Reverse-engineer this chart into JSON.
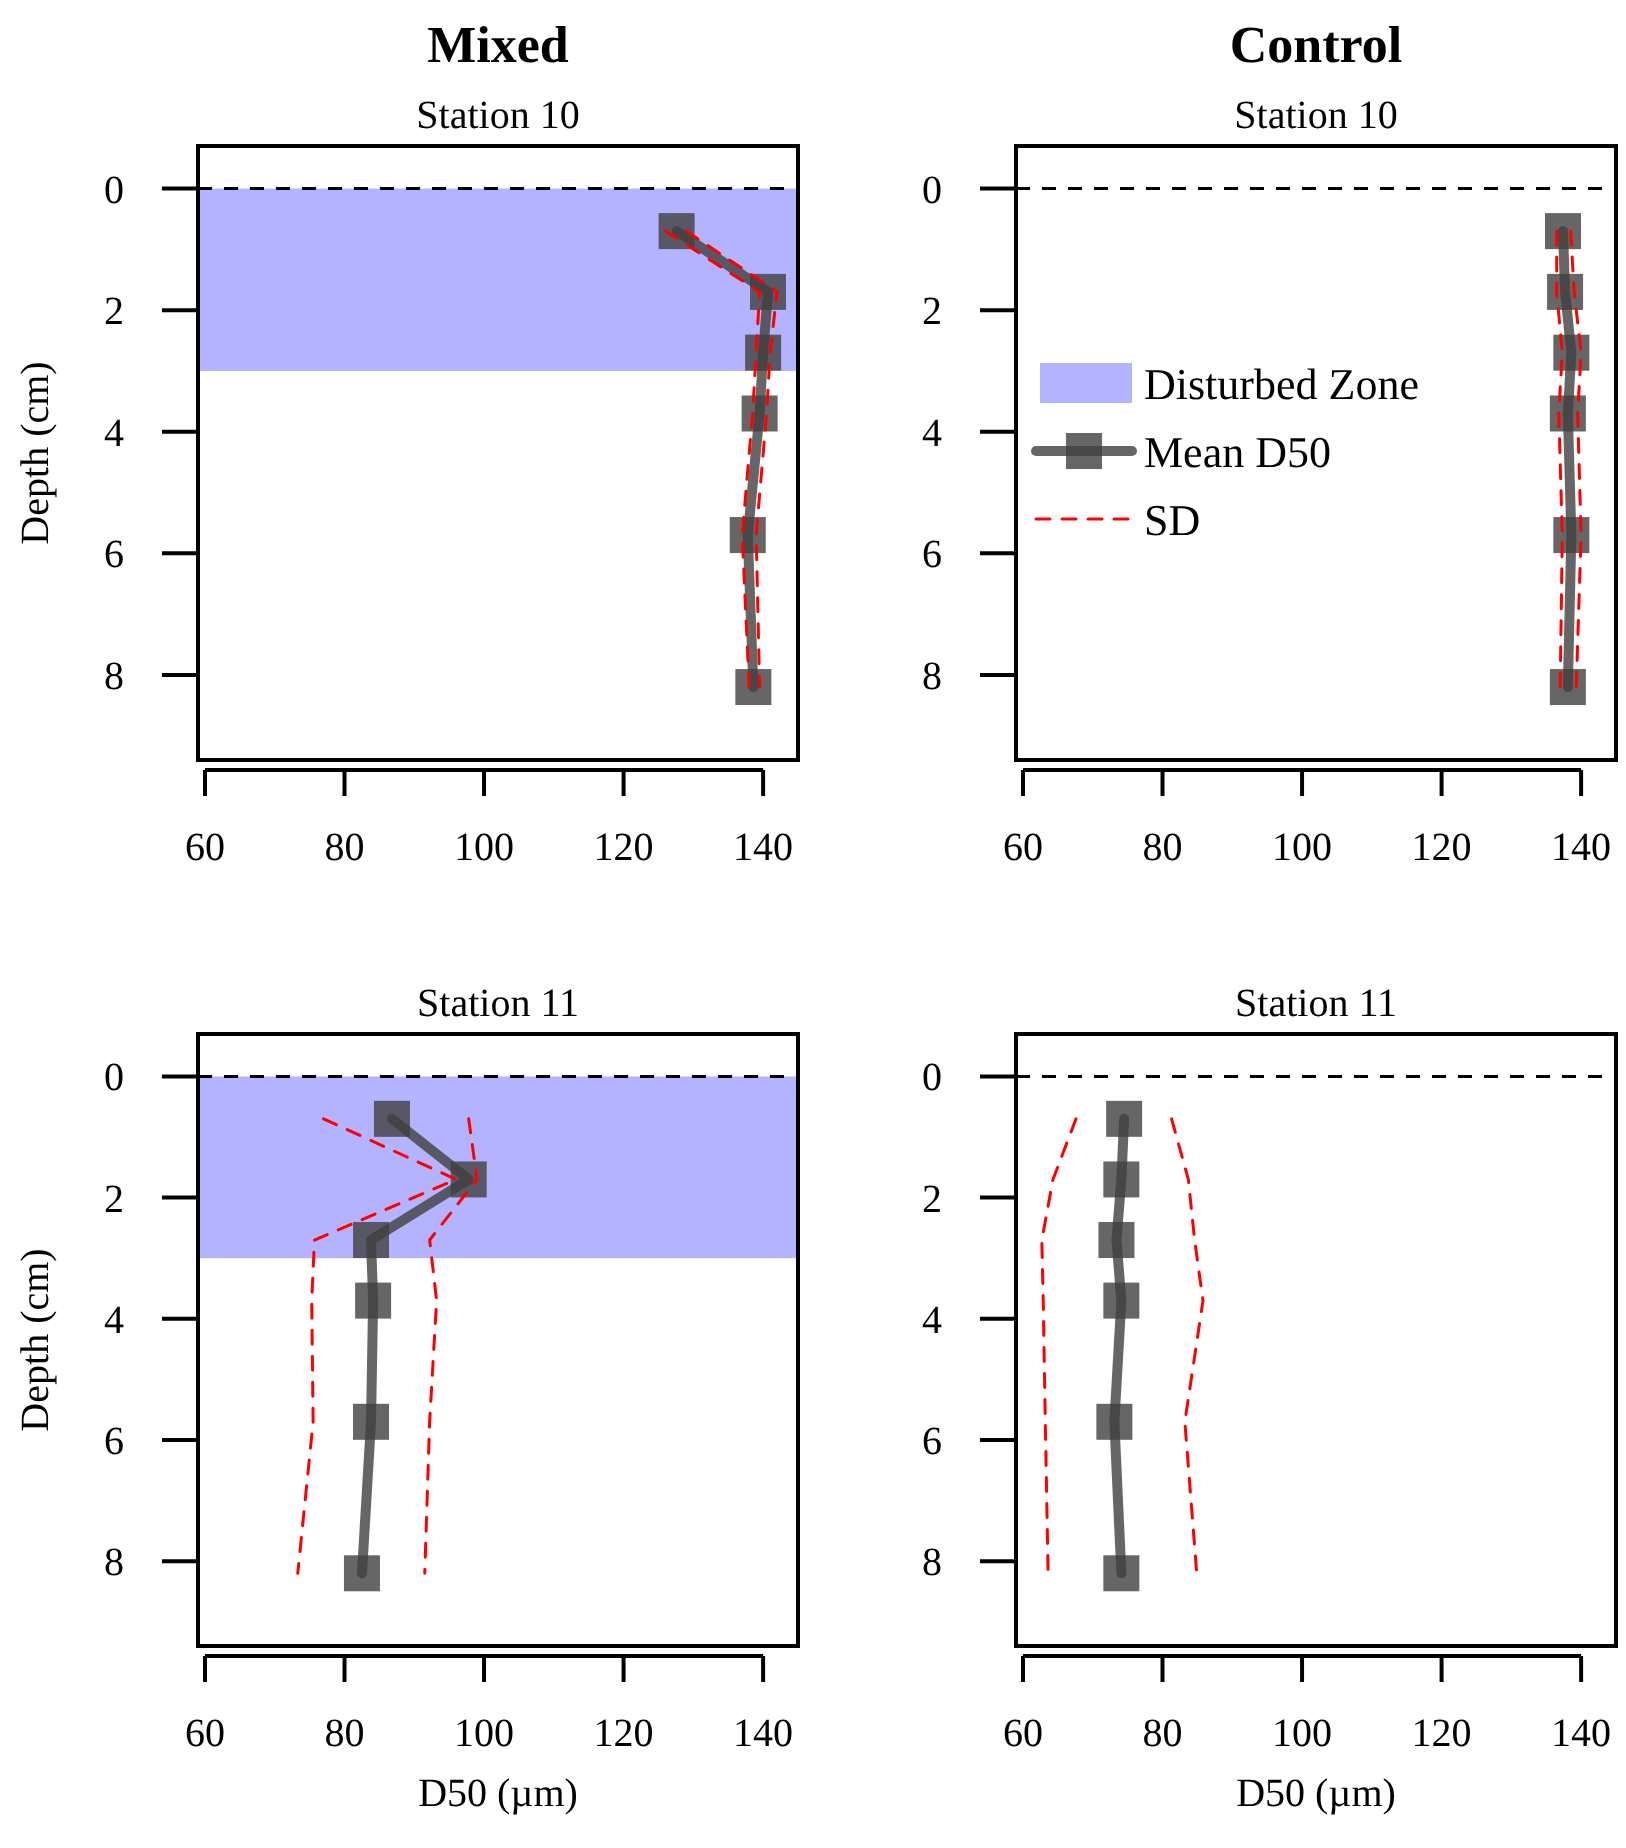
{
  "chart_data": [
    {
      "type": "line",
      "title": "Mixed",
      "subtitle": "Station 10",
      "ylabel": "Depth (cm)",
      "xlim": [
        59,
        145
      ],
      "xticks": [
        60,
        80,
        100,
        120,
        140
      ],
      "ylim": [
        9.4,
        -0.7
      ],
      "yticks": [
        0,
        2,
        4,
        6,
        8
      ],
      "bands": [
        {
          "axis": "y",
          "from": 0,
          "to": 3,
          "label": "Disturbed Zone",
          "color": "#b3b3ff"
        }
      ],
      "ref_lines": [
        {
          "axis": "y",
          "value": 0,
          "color": "#000000",
          "line_style": "dashed"
        }
      ],
      "series": [
        {
          "color": "#404040",
          "marker": "square",
          "x": [
            127.6,
            140.7,
            140,
            139.5,
            137.8,
            138.6
          ],
          "values": [
            0.7,
            1.7,
            2.7,
            3.7,
            5.7,
            8.2
          ]
        },
        {
          "color": "#ff0000",
          "line_style": "dashed",
          "marker": "none",
          "x": [
            126,
            139.5,
            139,
            138.5,
            137,
            138
          ],
          "values": [
            0.7,
            1.7,
            2.7,
            3.7,
            5.7,
            8.2
          ]
        },
        {
          "color": "#ff0000",
          "line_style": "dashed",
          "marker": "none",
          "x": [
            129,
            142,
            141,
            140.5,
            139,
            139.5
          ],
          "values": [
            0.7,
            1.7,
            2.7,
            3.7,
            5.7,
            8.2
          ]
        }
      ]
    },
    {
      "type": "line",
      "title": "Control",
      "subtitle": "Station 10",
      "xlim": [
        59,
        145
      ],
      "xticks": [
        60,
        80,
        100,
        120,
        140
      ],
      "ylim": [
        9.4,
        -0.7
      ],
      "yticks": [
        0,
        2,
        4,
        6,
        8
      ],
      "legend": "left",
      "ref_lines": [
        {
          "axis": "y",
          "value": 0,
          "color": "#000000",
          "line_style": "dashed"
        }
      ],
      "series": [
        {
          "name": "Mean D50",
          "color": "#404040",
          "marker": "square",
          "x": [
            137.4,
            137.7,
            138.6,
            138.1,
            138.6,
            138.1
          ],
          "values": [
            0.7,
            1.7,
            2.7,
            3.7,
            5.7,
            8.2
          ]
        },
        {
          "name": "SD",
          "color": "#ff0000",
          "line_style": "dashed",
          "marker": "none",
          "x": [
            136.5,
            136.5,
            137.3,
            136.8,
            137.3,
            137
          ],
          "values": [
            0.7,
            1.7,
            2.7,
            3.7,
            5.7,
            8.2
          ]
        },
        {
          "color": "#ff0000",
          "line_style": "dashed",
          "marker": "none",
          "x": [
            138.5,
            139,
            140,
            139.5,
            140,
            139.3
          ],
          "values": [
            0.7,
            1.7,
            2.7,
            3.7,
            5.7,
            8.2
          ]
        }
      ]
    },
    {
      "type": "line",
      "subtitle": "Station 11",
      "ylabel": "Depth (cm)",
      "xlabel": "D50 (µm)",
      "xlim": [
        59,
        145
      ],
      "xticks": [
        60,
        80,
        100,
        120,
        140
      ],
      "ylim": [
        9.4,
        -0.7
      ],
      "yticks": [
        0,
        2,
        4,
        6,
        8
      ],
      "bands": [
        {
          "axis": "y",
          "from": 0,
          "to": 3,
          "color": "#b3b3ff"
        }
      ],
      "ref_lines": [
        {
          "axis": "y",
          "value": 0,
          "color": "#000000",
          "line_style": "dashed"
        }
      ],
      "series": [
        {
          "color": "#404040",
          "marker": "square",
          "x": [
            86.8,
            97.8,
            83.8,
            84.1,
            83.8,
            82.5
          ],
          "values": [
            0.7,
            1.7,
            2.7,
            3.7,
            5.7,
            8.2
          ]
        },
        {
          "color": "#ff0000",
          "line_style": "dashed",
          "marker": "none",
          "x": [
            77,
            96,
            75.7,
            75.3,
            75.5,
            73.3
          ],
          "values": [
            0.7,
            1.7,
            2.7,
            3.7,
            5.7,
            8.2
          ]
        },
        {
          "color": "#ff0000",
          "line_style": "dashed",
          "marker": "none",
          "x": [
            97.8,
            99,
            92.2,
            93.2,
            92.2,
            91.5
          ],
          "values": [
            0.7,
            1.7,
            2.7,
            3.7,
            5.7,
            8.2
          ]
        }
      ]
    },
    {
      "type": "line",
      "subtitle": "Station 11",
      "xlabel": "D50 (µm)",
      "xlim": [
        59,
        145
      ],
      "xticks": [
        60,
        80,
        100,
        120,
        140
      ],
      "ylim": [
        9.4,
        -0.7
      ],
      "yticks": [
        0,
        2,
        4,
        6,
        8
      ],
      "ref_lines": [
        {
          "axis": "y",
          "value": 0,
          "color": "#000000",
          "line_style": "dashed"
        }
      ],
      "series": [
        {
          "color": "#404040",
          "marker": "square",
          "x": [
            74.5,
            74.1,
            73.4,
            74.1,
            73.1,
            74.1
          ],
          "values": [
            0.7,
            1.7,
            2.7,
            3.7,
            5.7,
            8.2
          ]
        },
        {
          "color": "#ff0000",
          "line_style": "dashed",
          "marker": "none",
          "x": [
            67.6,
            64.3,
            62.7,
            62.9,
            63.2,
            63.6
          ],
          "values": [
            0.7,
            1.7,
            2.7,
            3.7,
            5.7,
            8.2
          ]
        },
        {
          "color": "#ff0000",
          "line_style": "dashed",
          "marker": "none",
          "x": [
            81.3,
            83.7,
            84.6,
            85.8,
            83.2,
            84.9
          ],
          "values": [
            0.7,
            1.7,
            2.7,
            3.7,
            5.7,
            8.2
          ]
        }
      ]
    }
  ]
}
